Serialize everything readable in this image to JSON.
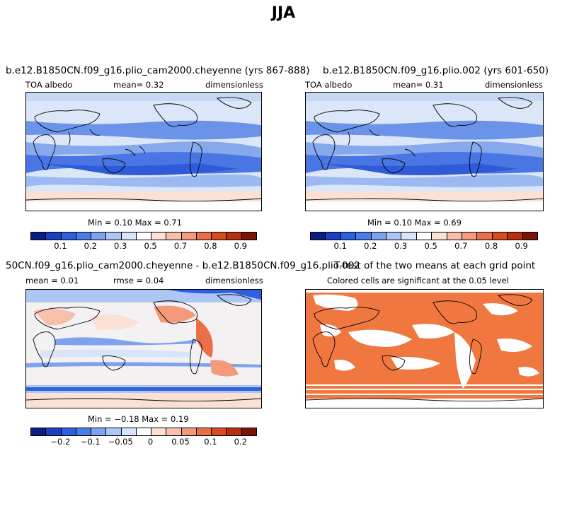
{
  "title": "JJA",
  "panels": [
    {
      "id": "p1",
      "title": "b.e12.B1850CN.f09_g16.plio_cam2000.cheyenne (yrs 867-888)",
      "left": "TOA albedo",
      "mid": "mean=   0.32",
      "right": "dimensionless",
      "minmax": "Min =   0.10 Max =   0.71",
      "type": "albedo"
    },
    {
      "id": "p2",
      "title": "b.e12.B1850CN.f09_g16.plio.002 (yrs 601-650)",
      "left": "TOA albedo",
      "mid": "mean=   0.31",
      "right": "dimensionless",
      "minmax": "Min =   0.10 Max =   0.69",
      "type": "albedo"
    },
    {
      "id": "p3",
      "title": "50CN.f09_g16.plio_cam2000.cheyenne - b.e12.B1850CN.f09_g16.plio.002",
      "left": "mean =   0.01",
      "mid": "rmse =   0.04",
      "right": "dimensionless",
      "minmax": "Min =  −0.18 Max =   0.19",
      "type": "diff"
    },
    {
      "id": "p4",
      "title": "T-test of the two means at each grid point",
      "left": "Colored cells are significant at the 0.05 level",
      "type": "ttest"
    }
  ],
  "colorbars": {
    "albedo": {
      "colors": [
        "#0b1e85",
        "#1c3fc3",
        "#2e5fe0",
        "#4a7de8",
        "#7ea2ee",
        "#aec6f4",
        "#d8e4fa",
        "#ffffff",
        "#fbe0d4",
        "#f6c0aa",
        "#f29a7a",
        "#ea6e48",
        "#d84a20",
        "#b82f10",
        "#7a1505"
      ],
      "labels": [
        "0.1",
        "0.2",
        "0.3",
        "0.5",
        "0.7",
        "0.8",
        "0.9"
      ]
    },
    "diff": {
      "colors": [
        "#0b1e85",
        "#1c3fc3",
        "#2e5fe0",
        "#4a7de8",
        "#7ea2ee",
        "#aec6f4",
        "#d8e4fa",
        "#ffffff",
        "#fbe0d4",
        "#f6c0aa",
        "#f29a7a",
        "#ea6e48",
        "#d84a20",
        "#b82f10",
        "#7a1505"
      ],
      "labels": [
        "−0.2",
        "−0.1",
        "−0.05",
        "0",
        "0.05",
        "0.1",
        "0.2"
      ]
    }
  },
  "colors": {
    "ttest_fill": "#f07840"
  }
}
